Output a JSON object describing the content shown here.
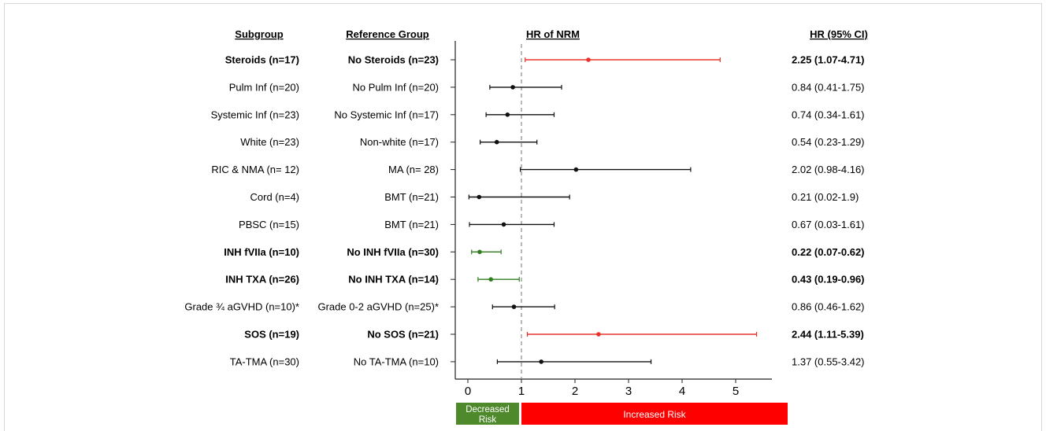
{
  "headers": {
    "subgroup": "Subgroup",
    "reference": "Reference Group",
    "plot": "HR of NRM",
    "hr": "HR (95% CI)"
  },
  "rows": [
    {
      "subgroup": "Steroids (n=17)",
      "reference": "No Steroids (n=23)",
      "hr_text": "2.25 (1.07-4.71)",
      "bold": true,
      "color": "#e8332b"
    },
    {
      "subgroup": "Pulm Inf (n=20)",
      "reference": "No Pulm Inf (n=20)",
      "hr_text": "0.84 (0.41-1.75)",
      "bold": false,
      "color": "#111111"
    },
    {
      "subgroup": "Systemic Inf (n=23)",
      "reference": "No Systemic Inf (n=17)",
      "hr_text": "0.74 (0.34-1.61)",
      "bold": false,
      "color": "#111111"
    },
    {
      "subgroup": "White (n=23)",
      "reference": "Non-white (n=17)",
      "hr_text": "0.54 (0.23-1.29)",
      "bold": false,
      "color": "#111111"
    },
    {
      "subgroup": "RIC & NMA (n= 12)",
      "reference": "MA (n= 28)",
      "hr_text": "2.02 (0.98-4.16)",
      "bold": false,
      "color": "#111111"
    },
    {
      "subgroup": "Cord (n=4)",
      "reference": "BMT (n=21)",
      "hr_text": "0.21 (0.02-1.9)",
      "bold": false,
      "color": "#111111"
    },
    {
      "subgroup": "PBSC (n=15)",
      "reference": "BMT (n=21)",
      "hr_text": "0.67 (0.03-1.61)",
      "bold": false,
      "color": "#111111"
    },
    {
      "subgroup": "INH fVIIa (n=10)",
      "reference": "No INH fVIIa (n=30)",
      "hr_text": "0.22 (0.07-0.62)",
      "bold": true,
      "color": "#2f7d1f"
    },
    {
      "subgroup": "INH TXA (n=26)",
      "reference": "No INH TXA (n=14)",
      "hr_text": "0.43 (0.19-0.96)",
      "bold": true,
      "color": "#2f7d1f"
    },
    {
      "subgroup": "Grade ¾ aGVHD (n=10)*",
      "reference": "Grade 0-2 aGVHD (n=25)*",
      "hr_text": "0.86 (0.46-1.62)",
      "bold": false,
      "color": "#111111"
    },
    {
      "subgroup": "SOS (n=19)",
      "reference": "No SOS (n=21)",
      "hr_text": "2.44 (1.11-5.39)",
      "bold": true,
      "color": "#e8332b"
    },
    {
      "subgroup": "TA-TMA (n=30)",
      "reference": "No TA-TMA (n=10)",
      "hr_text": "1.37 (0.55-3.42)",
      "bold": false,
      "color": "#111111"
    }
  ],
  "legend": {
    "decreased": "Decreased\nRisk",
    "increased": "Increased Risk",
    "decreased_color": "#4e8a2c",
    "increased_color": "#ff0000"
  },
  "chart_data": {
    "type": "scatter",
    "title": "HR of NRM",
    "categories": [
      "Steroids (n=17)",
      "Pulm Inf (n=20)",
      "Systemic Inf (n=23)",
      "White (n=23)",
      "RIC & NMA (n= 12)",
      "Cord (n=4)",
      "PBSC (n=15)",
      "INH fVIIa (n=10)",
      "INH TXA (n=26)",
      "Grade ¾ aGVHD (n=10)*",
      "SOS (n=19)",
      "TA-TMA (n=30)"
    ],
    "hr": [
      2.25,
      0.84,
      0.74,
      0.54,
      2.02,
      0.21,
      0.67,
      0.22,
      0.43,
      0.86,
      2.44,
      1.37
    ],
    "ci_low": [
      1.07,
      0.41,
      0.34,
      0.23,
      0.98,
      0.02,
      0.03,
      0.07,
      0.19,
      0.46,
      1.11,
      0.55
    ],
    "ci_high": [
      4.71,
      1.75,
      1.61,
      1.29,
      4.16,
      1.9,
      1.61,
      0.62,
      0.96,
      1.62,
      5.39,
      3.42
    ],
    "reference_line": 1,
    "xlim": [
      -0.2,
      5.7
    ],
    "xticks": [
      0,
      1,
      2,
      3,
      4,
      5
    ],
    "xlabel": "",
    "ylabel": ""
  }
}
